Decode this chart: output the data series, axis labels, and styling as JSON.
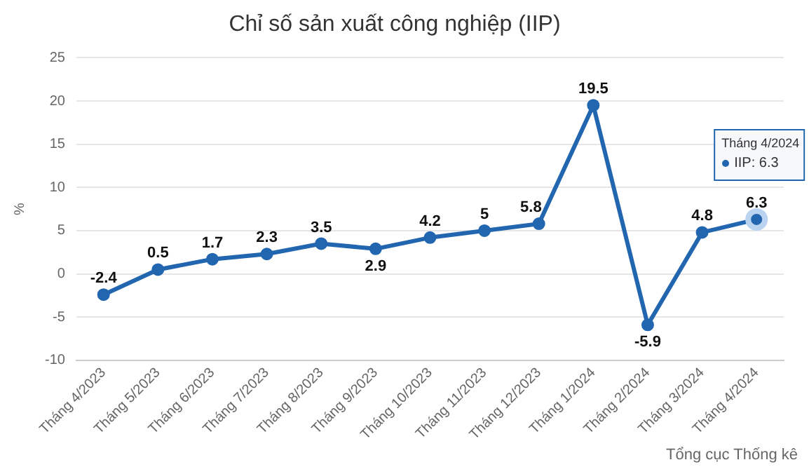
{
  "chart_data": {
    "type": "line",
    "title": "Chỉ số sản xuất công nghiệp (IIP)",
    "ylabel": "%",
    "categories": [
      "Tháng 4/2023",
      "Tháng 5/2023",
      "Tháng 6/2023",
      "Tháng 7/2023",
      "Tháng 8/2023",
      "Tháng 9/2023",
      "Tháng 10/2023",
      "Tháng 11/2023",
      "Tháng 12/2023",
      "Tháng 1/2024",
      "Tháng 2/2024",
      "Tháng 3/2024",
      "Tháng 4/2024"
    ],
    "series": [
      {
        "color": "#2266b0",
        "values": [
          -2.4,
          0.5,
          1.7,
          2.3,
          3.5,
          2.9,
          4.2,
          5,
          5.8,
          19.5,
          -5.9,
          4.8,
          6.3
        ]
      }
    ],
    "ylim": [
      -10,
      25
    ],
    "yticks": [
      -10,
      -5,
      0,
      5,
      10,
      15,
      20,
      25
    ],
    "grid": "y",
    "legend": false,
    "marker": "circle",
    "line_style": "solid",
    "data_labels": true,
    "annotations": [
      "Tháng 4/2024",
      "IIP: 6.3",
      "Tổng cục Thống kê"
    ]
  }
}
